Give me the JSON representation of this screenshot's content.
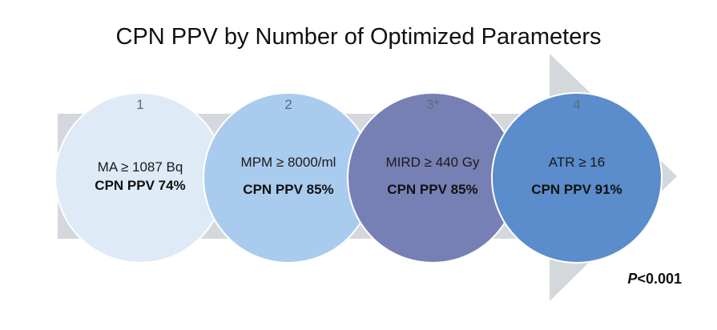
{
  "title": "CPN PPV by Number of Optimized Parameters",
  "steps": [
    {
      "number": "1",
      "parameter": "MA ≥ 1087 Bq",
      "ppv": "CPN PPV 74%",
      "color": "#deeaf6"
    },
    {
      "number": "2",
      "parameter": "MPM ≥ 8000/ml",
      "ppv": "CPN PPV 85%",
      "color": "#a9cbed"
    },
    {
      "number": "3*",
      "parameter": "MIRD ≥ 440 Gy",
      "ppv": "CPN PPV 85%",
      "color": "#7780b5"
    },
    {
      "number": "4",
      "parameter": "ATR ≥ 16",
      "ppv": "CPN PPV 91%",
      "color": "#5b8ccb"
    }
  ],
  "p_value": {
    "p": "P",
    "rest": "<0.001"
  },
  "colors": {
    "arrow": "#d4d8dc",
    "circle_border": "#ffffff"
  }
}
